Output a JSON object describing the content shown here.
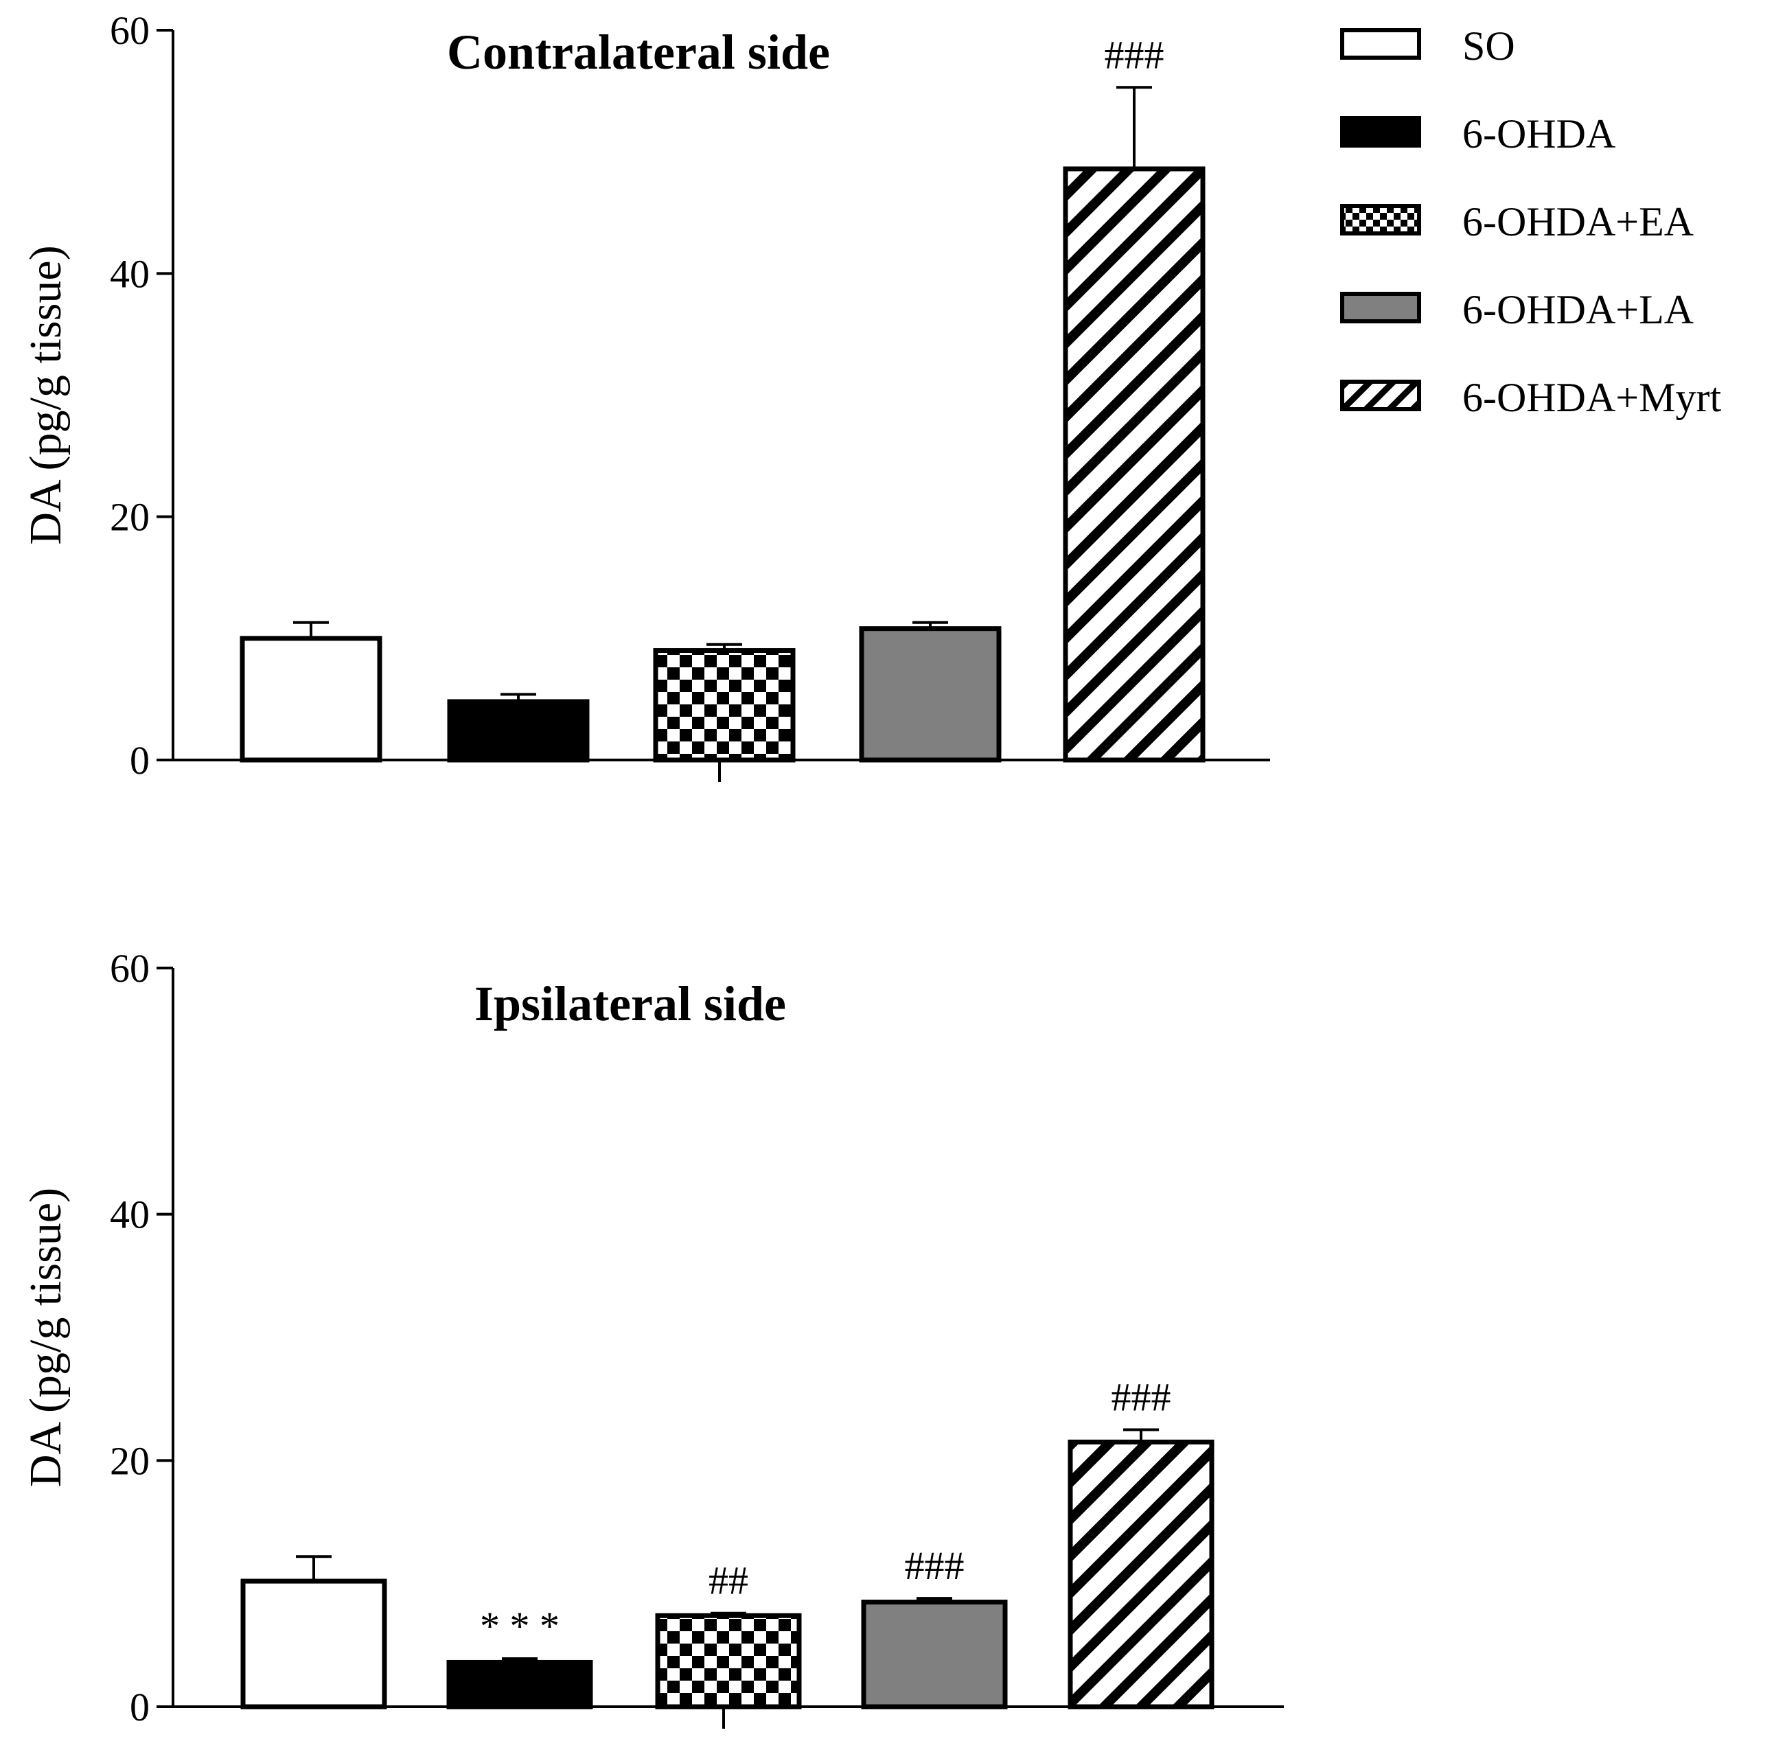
{
  "legend": {
    "items": [
      {
        "label": "SO",
        "fill": "white"
      },
      {
        "label": "6-OHDA",
        "fill": "black"
      },
      {
        "label": "6-OHDA+EA",
        "fill": "checker"
      },
      {
        "label": "6-OHDA+LA",
        "fill": "gray"
      },
      {
        "label": "6-OHDA+Myrt",
        "fill": "stripes"
      }
    ]
  },
  "colors": {
    "gray": "#808080",
    "black": "#000000",
    "white": "#ffffff"
  },
  "chart_data": [
    {
      "type": "bar",
      "title": "Contralateral side",
      "ylabel": "DA (pg/g tissue)",
      "xlabel": "",
      "ylim": [
        0,
        60
      ],
      "yticks": [
        0,
        20,
        40,
        60
      ],
      "categories": [
        "SO",
        "6-OHDA",
        "6-OHDA+EA",
        "6-OHDA+LA",
        "6-OHDA+Myrt"
      ],
      "values": [
        10.0,
        4.8,
        9.0,
        10.8,
        48.6
      ],
      "errors": [
        1.3,
        0.6,
        0.5,
        0.5,
        6.7
      ],
      "annotations": [
        "",
        "",
        "",
        "",
        "###"
      ]
    },
    {
      "type": "bar",
      "title": "Ipsilateral side",
      "ylabel": "DA (pg/g tissue)",
      "xlabel": "",
      "ylim": [
        0,
        60
      ],
      "yticks": [
        0,
        20,
        40,
        60
      ],
      "categories": [
        "SO",
        "6-OHDA",
        "6-OHDA+EA",
        "6-OHDA+LA",
        "6-OHDA+Myrt"
      ],
      "values": [
        10.2,
        3.6,
        7.4,
        8.5,
        21.5
      ],
      "errors": [
        2.0,
        0.3,
        0.2,
        0.3,
        1.0
      ],
      "annotations": [
        "",
        "* * *",
        "##",
        "###",
        "###"
      ]
    }
  ]
}
